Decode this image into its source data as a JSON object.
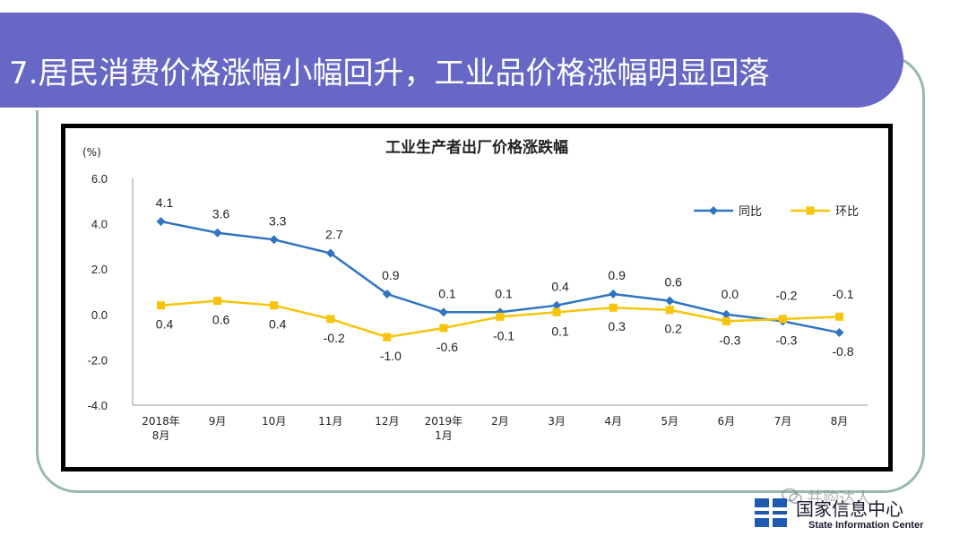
{
  "slide": {
    "title": "7.居民消费价格涨幅小幅回升，工业品价格涨幅明显回落",
    "footer_org": "国家信息中心",
    "footer_org_en": "State Information Center",
    "watermark": "并购达人",
    "colors": {
      "banner": "#6767c6",
      "frame": "#9ab8b0",
      "yoy": "#2f74c0",
      "mom": "#f6c40a"
    }
  },
  "chart_data": {
    "type": "line",
    "title": "工业生产者出厂价格涨跌幅",
    "ylabel": "(%)",
    "xlabel": "",
    "categories": [
      "2018年\n8月",
      "9月",
      "10月",
      "11月",
      "12月",
      "2019年\n1月",
      "2月",
      "3月",
      "4月",
      "5月",
      "6月",
      "7月",
      "8月"
    ],
    "ylim": [
      -4.0,
      6.0
    ],
    "yticks": [
      "6.0",
      "4.0",
      "2.0",
      "0.0",
      "-2.0",
      "-4.0"
    ],
    "grid": false,
    "legend": "top-right",
    "series": [
      {
        "name": "同比",
        "color": "#2f74c0",
        "marker": "diamond",
        "values": [
          4.1,
          3.6,
          3.3,
          2.7,
          0.9,
          0.1,
          0.1,
          0.4,
          0.9,
          0.6,
          0.0,
          -0.3,
          -0.8
        ],
        "labels": [
          "4.1",
          "3.6",
          "3.3",
          "2.7",
          "0.9",
          "0.1",
          "0.1",
          "0.4",
          "0.9",
          "0.6",
          "0.0",
          "-0.3",
          "-0.8"
        ]
      },
      {
        "name": "环比",
        "color": "#f6c40a",
        "marker": "square",
        "values": [
          0.4,
          0.6,
          0.4,
          -0.2,
          -1.0,
          -0.6,
          -0.1,
          0.1,
          0.3,
          0.2,
          -0.3,
          -0.2,
          -0.1
        ],
        "labels": [
          "0.4",
          "0.6",
          "0.4",
          "-0.2",
          "-1.0",
          "-0.6",
          "-0.1",
          "0.1",
          "0.3",
          "0.2",
          "-0.3",
          "-0.2",
          "-0.1"
        ]
      }
    ]
  }
}
